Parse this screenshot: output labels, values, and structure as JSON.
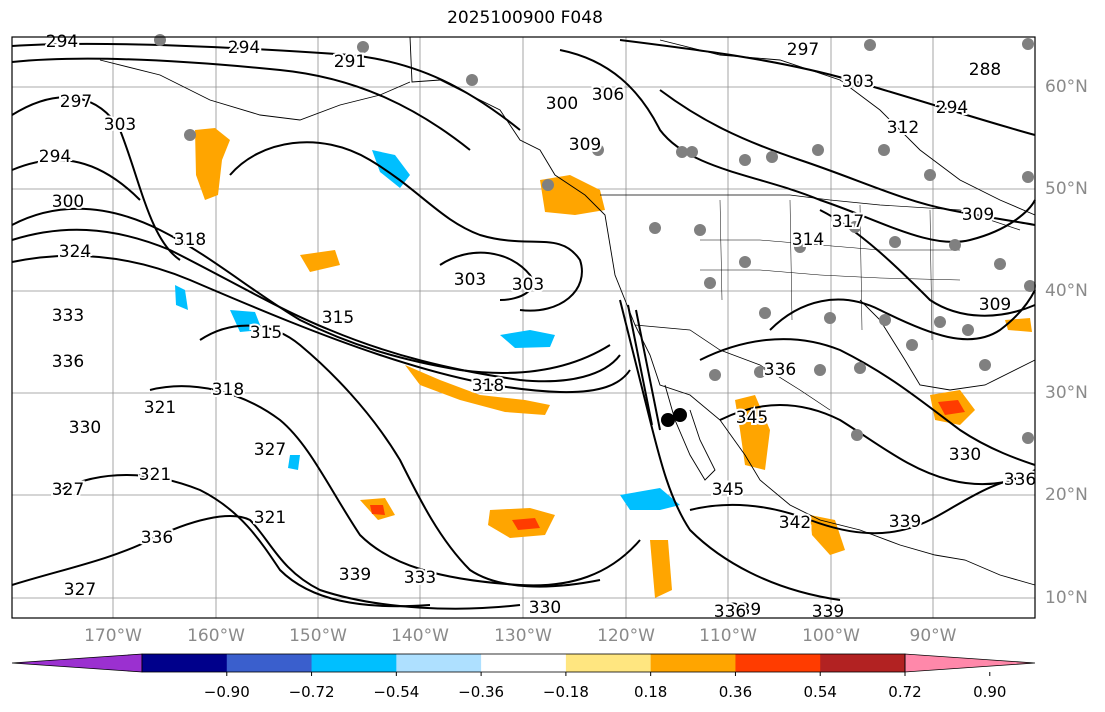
{
  "title": "2025100900 F048",
  "lon_labels": [
    "170°W",
    "160°W",
    "150°W",
    "140°W",
    "130°W",
    "120°W",
    "110°W",
    "100°W",
    "90°W"
  ],
  "lat_labels": [
    "60°N",
    "50°N",
    "40°N",
    "30°N",
    "20°N",
    "10°N"
  ],
  "colorbar": {
    "ticks": [
      "−0.90",
      "−0.72",
      "−0.54",
      "−0.36",
      "−0.18",
      "0.18",
      "0.36",
      "0.54",
      "0.72",
      "0.90"
    ],
    "colors": [
      "#9b30d0",
      "#00008b",
      "#3a5fcd",
      "#00bfff",
      "#aee0ff",
      "#ffffff",
      "#ffe680",
      "#ffa500",
      "#ff3c00",
      "#b22222",
      "#ff88aa"
    ]
  },
  "contour_labels": [
    "294",
    "294",
    "291",
    "297",
    "303",
    "303",
    "288",
    "294",
    "297",
    "306",
    "300",
    "309",
    "312",
    "300",
    "294",
    "318",
    "324",
    "303",
    "303",
    "315",
    "315",
    "318",
    "333",
    "336",
    "321",
    "318",
    "330",
    "327",
    "321",
    "327",
    "345",
    "336",
    "345",
    "342",
    "339",
    "336",
    "339",
    "333",
    "327",
    "339",
    "330",
    "339",
    "336",
    "321",
    "330",
    "309",
    "309",
    "314",
    "336",
    "317"
  ]
}
